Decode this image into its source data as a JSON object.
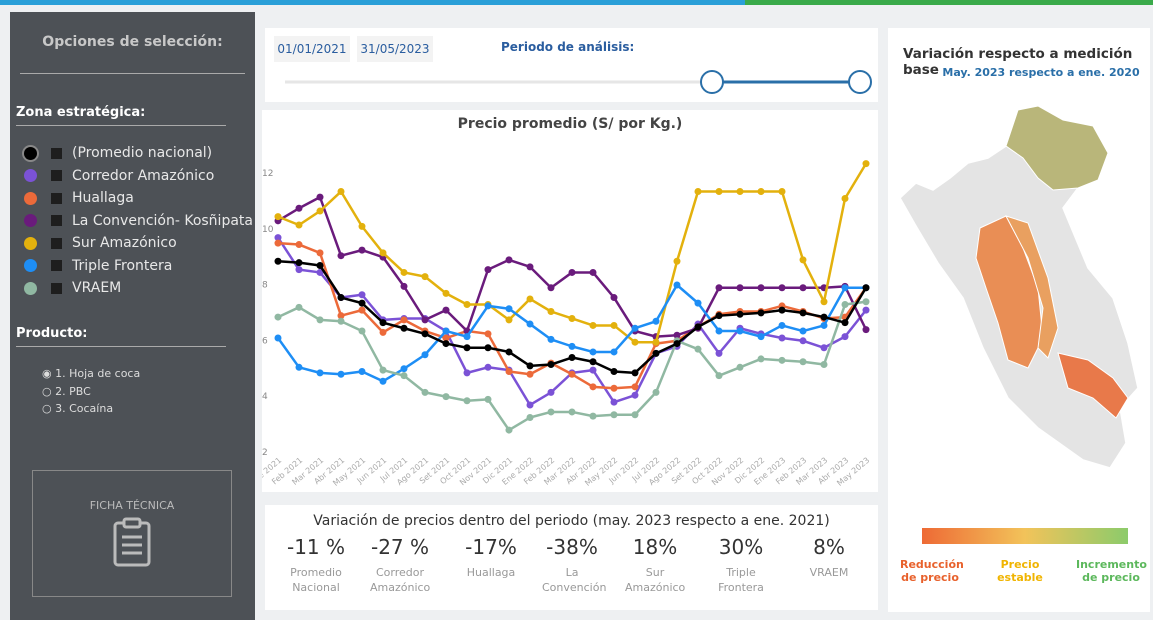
{
  "sidebar": {
    "title": "Opciones de selección:",
    "zone_heading": "Zona estratégica:",
    "product_heading": "Producto:",
    "products": [
      "1. Hoja de coca",
      "2. PBC",
      "3. Cocaína"
    ],
    "ficha": "FICHA TÉCNICA"
  },
  "period": {
    "start": "01/01/2021",
    "end": "31/05/2023",
    "label": "Periodo de análisis:"
  },
  "chart": {
    "type": "line",
    "title": "Precio promedio (S/ por Kg.)",
    "x": [
      "Ene 2021",
      "Feb 2021",
      "Mar 2021",
      "Abr 2021",
      "May 2021",
      "Jun 2021",
      "Jul 2021",
      "Ago 2021",
      "Set 2021",
      "Oct 2021",
      "Nov 2021",
      "Dic 2021",
      "Ene 2022",
      "Feb 2022",
      "Mar 2022",
      "Abr 2022",
      "May 2022",
      "Jun 2022",
      "Jul 2022",
      "Ago 2022",
      "Set 2022",
      "Oct 2022",
      "Nov 2022",
      "Dic 2022",
      "Ene 2023",
      "Feb 2023",
      "Mar 2023",
      "Abr 2023",
      "May 2023"
    ],
    "ylim": [
      2,
      12.5
    ],
    "yticks": [
      2,
      4,
      6,
      8,
      10,
      12
    ],
    "series": [
      {
        "name": "Corredor Amazónico",
        "color": "#7b52d6",
        "values": [
          9.65,
          8.5,
          8.4,
          7.5,
          7.6,
          6.7,
          6.75,
          6.75,
          6.3,
          4.8,
          5.0,
          4.9,
          3.65,
          4.1,
          4.8,
          4.9,
          3.75,
          4.0,
          5.5,
          5.75,
          6.55,
          5.5,
          6.4,
          6.2,
          6.05,
          5.95,
          5.7,
          6.1,
          7.05
        ]
      },
      {
        "name": "Huallaga",
        "color": "#ec6a3a",
        "values": [
          9.45,
          9.4,
          9.1,
          6.85,
          7.05,
          6.25,
          6.7,
          6.3,
          6.05,
          6.3,
          6.2,
          4.85,
          4.75,
          5.15,
          4.75,
          4.3,
          4.25,
          4.3,
          5.85,
          5.95,
          6.45,
          6.9,
          7.0,
          7.0,
          7.2,
          7.0,
          6.75,
          6.8,
          7.85
        ]
      },
      {
        "name": "La Convención- Kosñipata",
        "color": "#6a1b7c",
        "values": [
          10.25,
          10.7,
          11.1,
          9.0,
          9.2,
          8.95,
          7.9,
          6.7,
          7.05,
          6.3,
          8.5,
          8.85,
          8.6,
          7.85,
          8.4,
          8.4,
          7.5,
          6.3,
          6.1,
          6.15,
          6.4,
          7.85,
          7.85,
          7.85,
          7.85,
          7.85,
          7.85,
          7.9,
          6.35
        ]
      },
      {
        "name": "Sur Amazónico",
        "color": "#e3b10d",
        "values": [
          10.4,
          10.1,
          10.6,
          11.3,
          10.05,
          9.1,
          8.4,
          8.25,
          7.65,
          7.25,
          7.25,
          6.7,
          7.45,
          7.0,
          6.75,
          6.5,
          6.5,
          5.9,
          5.9,
          8.8,
          11.3,
          11.3,
          11.3,
          11.3,
          11.3,
          8.85,
          7.35,
          11.05,
          12.3
        ]
      },
      {
        "name": "Triple Frontera",
        "color": "#1e8ef5",
        "values": [
          6.05,
          5.0,
          4.8,
          4.75,
          4.85,
          4.5,
          4.95,
          5.45,
          6.3,
          6.1,
          7.2,
          7.1,
          6.55,
          6.0,
          5.75,
          5.55,
          5.55,
          6.4,
          6.65,
          7.95,
          7.3,
          6.3,
          6.3,
          6.1,
          6.5,
          6.3,
          6.5,
          7.85,
          7.85
        ]
      },
      {
        "name": "VRAEM",
        "color": "#90b8a2",
        "values": [
          6.8,
          7.15,
          6.7,
          6.65,
          6.3,
          4.9,
          4.7,
          4.1,
          3.95,
          3.8,
          3.85,
          2.75,
          3.2,
          3.4,
          3.4,
          3.25,
          3.3,
          3.3,
          4.1,
          5.95,
          5.65,
          4.7,
          5.0,
          5.3,
          5.25,
          5.2,
          5.1,
          7.25,
          7.35
        ]
      },
      {
        "name": "(Promedio nacional)",
        "color": "#000000",
        "values": [
          8.8,
          8.75,
          8.65,
          7.5,
          7.3,
          6.6,
          6.4,
          6.2,
          5.85,
          5.7,
          5.7,
          5.55,
          5.05,
          5.1,
          5.35,
          5.2,
          4.85,
          4.8,
          5.5,
          5.85,
          6.45,
          6.85,
          6.9,
          6.95,
          7.05,
          6.95,
          6.8,
          6.6,
          7.85
        ]
      }
    ]
  },
  "variation": {
    "title": "Variación de precios dentro del periodo (may. 2023 respecto a ene. 2021)",
    "items": [
      {
        "value": "-11 %",
        "label": "Promedio Nacional"
      },
      {
        "value": "-27 %",
        "label": "Corredor Amazónico"
      },
      {
        "value": "-17%",
        "label": "Huallaga"
      },
      {
        "value": "-38%",
        "label": "La Convención"
      },
      {
        "value": "18%",
        "label": "Sur Amazónico"
      },
      {
        "value": "30%",
        "label": "Triple Frontera"
      },
      {
        "value": "8%",
        "label": "VRAEM"
      }
    ]
  },
  "map": {
    "title": "Variación respecto a medición base",
    "subtitle": "May. 2023 respecto a ene. 2020",
    "legend": [
      "Reducción de precio",
      "Precio estable",
      "Incremento de precio"
    ]
  }
}
